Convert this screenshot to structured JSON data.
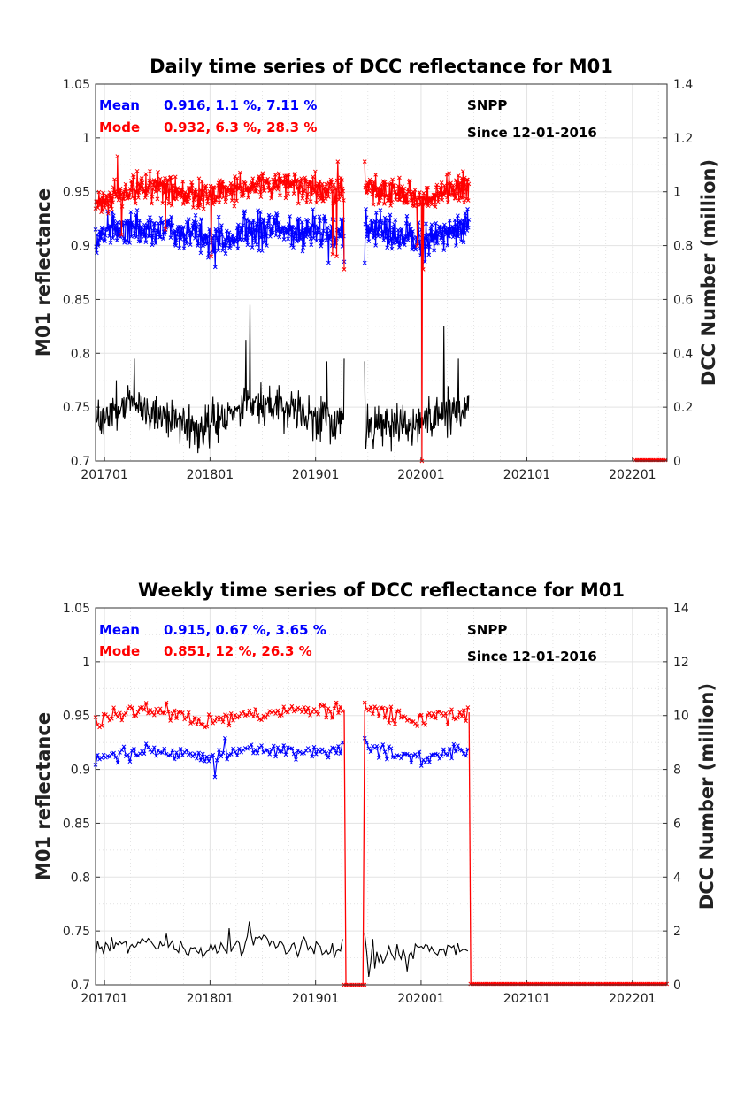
{
  "chart_data": [
    {
      "type": "line",
      "title": "Daily time series of DCC reflectance for M01",
      "ylabel": "M01 reflectance",
      "y2label": "DCC Number (million)",
      "x_tick_labels": [
        "201701",
        "201801",
        "201901",
        "202001",
        "202101",
        "202201"
      ],
      "x_tick_dates": [
        "2017-01-01",
        "2018-01-01",
        "2019-01-01",
        "2020-01-01",
        "2021-01-01",
        "2022-01-01"
      ],
      "xlim": [
        "2016-12-01",
        "2022-05-01"
      ],
      "ylim": [
        0.7,
        1.05
      ],
      "y_ticks": [
        "0.7",
        "0.75",
        "0.8",
        "0.85",
        "0.9",
        "0.95",
        "1",
        "1.05"
      ],
      "y2lim": [
        0,
        1.4
      ],
      "y2_ticks": [
        "0",
        "0.2",
        "0.4",
        "0.6",
        "0.8",
        "1",
        "1.2",
        "1.4"
      ],
      "grid": true,
      "colors": {
        "mean": "#0000ff",
        "mode": "#ff0000",
        "count": "#000000"
      },
      "legend": {
        "mean_label": "Mean",
        "mean_stats": "0.916, 1.1 %, 7.11 %",
        "mode_label": "Mode",
        "mode_stats": "0.932, 6.3 %, 28.3 %",
        "satellite": "SNPP",
        "since": "Since 12-01-2016"
      },
      "segments": [
        [
          "2016-12-01",
          "2019-04-10"
        ],
        [
          "2019-06-20",
          "2020-06-15"
        ]
      ],
      "zero_tail": [
        "2022-01-10",
        "2022-05-01"
      ],
      "series": [
        {
          "key": "mean",
          "axis": "left",
          "level": 0.915,
          "noise": 0.012,
          "dips": [
            [
              "2018-01-20",
              0.88
            ],
            [
              "2019-02-15",
              0.884
            ],
            [
              "2020-01-15",
              0.885
            ]
          ],
          "knots": [
            [
              "2016-12-01",
              0.91
            ],
            [
              "2017-06-01",
              0.918
            ],
            [
              "2018-01-01",
              0.905
            ],
            [
              "2018-06-01",
              0.915
            ],
            [
              "2019-03-01",
              0.912
            ],
            [
              "2019-07-01",
              0.918
            ],
            [
              "2020-01-01",
              0.905
            ],
            [
              "2020-06-01",
              0.918
            ]
          ]
        },
        {
          "key": "mode",
          "axis": "left",
          "level": 0.952,
          "noise": 0.01,
          "dips": [
            [
              "2017-03-01",
              0.91
            ],
            [
              "2017-08-01",
              0.915
            ],
            [
              "2018-01-05",
              0.89
            ],
            [
              "2019-03-01",
              0.892
            ],
            [
              "2019-03-15",
              0.89
            ],
            [
              "2019-12-20",
              0.9
            ],
            [
              "2020-01-05",
              0.7
            ],
            [
              "2020-01-08",
              0.878
            ]
          ],
          "peaks": [
            [
              "2017-02-15",
              0.983
            ],
            [
              "2019-03-20",
              0.978
            ]
          ],
          "knots": [
            [
              "2016-12-01",
              0.94
            ],
            [
              "2017-06-01",
              0.955
            ],
            [
              "2018-01-01",
              0.945
            ],
            [
              "2018-06-01",
              0.958
            ],
            [
              "2019-03-01",
              0.952
            ],
            [
              "2019-07-01",
              0.955
            ],
            [
              "2020-01-01",
              0.945
            ],
            [
              "2020-06-01",
              0.955
            ]
          ]
        },
        {
          "key": "count",
          "axis": "right",
          "level": 0.17,
          "noise": 0.06,
          "peaks": [
            [
              "2018-05-20",
              0.58
            ],
            [
              "2018-05-05",
              0.45
            ],
            [
              "2020-03-20",
              0.5
            ],
            [
              "2017-04-15",
              0.38
            ],
            [
              "2019-02-10",
              0.37
            ],
            [
              "2020-05-10",
              0.38
            ]
          ],
          "knots": [
            [
              "2016-12-01",
              0.15
            ],
            [
              "2017-04-01",
              0.22
            ],
            [
              "2017-12-01",
              0.12
            ],
            [
              "2018-06-01",
              0.22
            ],
            [
              "2019-01-01",
              0.16
            ],
            [
              "2019-07-01",
              0.12
            ],
            [
              "2020-01-01",
              0.14
            ],
            [
              "2020-06-01",
              0.2
            ]
          ]
        }
      ]
    },
    {
      "type": "line",
      "title": "Weekly time series of DCC reflectance for M01",
      "ylabel": "M01 reflectance",
      "y2label": "DCC Number (million)",
      "x_tick_labels": [
        "201701",
        "201801",
        "201901",
        "202001",
        "202101",
        "202201"
      ],
      "x_tick_dates": [
        "2017-01-01",
        "2018-01-01",
        "2019-01-01",
        "2020-01-01",
        "2021-01-01",
        "2022-01-01"
      ],
      "xlim": [
        "2016-12-01",
        "2022-05-01"
      ],
      "ylim": [
        0.7,
        1.05
      ],
      "y_ticks": [
        "0.7",
        "0.75",
        "0.8",
        "0.85",
        "0.9",
        "0.95",
        "1",
        "1.05"
      ],
      "y2lim": [
        0,
        14
      ],
      "y2_ticks": [
        "0",
        "2",
        "4",
        "6",
        "8",
        "10",
        "12",
        "14"
      ],
      "grid": true,
      "colors": {
        "mean": "#0000ff",
        "mode": "#ff0000",
        "count": "#000000"
      },
      "legend": {
        "mean_label": "Mean",
        "mean_stats": "0.915, 0.67 %, 3.65 %",
        "mode_label": "Mode",
        "mode_stats": "0.851, 12 %, 26.3 %",
        "satellite": "SNPP",
        "since": "Since 12-01-2016"
      },
      "segments": [
        [
          "2016-12-01",
          "2019-04-10"
        ],
        [
          "2019-06-20",
          "2020-06-15"
        ]
      ],
      "zero_gap_fill": true,
      "zero_tail": [
        "2020-06-20",
        "2022-05-01"
      ],
      "series": [
        {
          "key": "mean",
          "axis": "left",
          "level": 0.915,
          "noise": 0.005,
          "dips": [
            [
              "2018-01-20",
              0.893
            ]
          ],
          "peaks": [
            [
              "2018-02-20",
              0.929
            ],
            [
              "2019-06-25",
              0.925
            ]
          ],
          "knots": [
            [
              "2016-12-01",
              0.91
            ],
            [
              "2017-06-01",
              0.918
            ],
            [
              "2018-01-01",
              0.91
            ],
            [
              "2018-06-01",
              0.918
            ],
            [
              "2019-03-01",
              0.915
            ],
            [
              "2019-07-01",
              0.92
            ],
            [
              "2020-01-01",
              0.91
            ],
            [
              "2020-06-01",
              0.92
            ]
          ]
        },
        {
          "key": "mode",
          "axis": "left",
          "level": 0.95,
          "noise": 0.005,
          "peaks": [
            [
              "2017-08-01",
              0.962
            ],
            [
              "2019-03-15",
              0.962
            ]
          ],
          "knots": [
            [
              "2016-12-01",
              0.946
            ],
            [
              "2017-06-01",
              0.956
            ],
            [
              "2017-12-01",
              0.943
            ],
            [
              "2018-06-01",
              0.952
            ],
            [
              "2019-03-01",
              0.955
            ],
            [
              "2019-07-01",
              0.955
            ],
            [
              "2020-01-01",
              0.945
            ],
            [
              "2020-06-01",
              0.953
            ]
          ]
        },
        {
          "key": "count",
          "axis": "right",
          "level": 1.4,
          "noise": 0.25,
          "peaks": [
            [
              "2018-05-20",
              2.35
            ],
            [
              "2018-03-10",
              2.1
            ],
            [
              "2017-08-01",
              1.9
            ],
            [
              "2019-07-15",
              1.7
            ]
          ],
          "dips": [
            [
              "2019-07-05",
              0.3
            ],
            [
              "2019-11-15",
              0.5
            ]
          ],
          "knots": [
            [
              "2016-12-01",
              1.4
            ],
            [
              "2017-06-01",
              1.6
            ],
            [
              "2018-01-01",
              1.2
            ],
            [
              "2018-06-01",
              1.6
            ],
            [
              "2019-03-01",
              1.3
            ],
            [
              "2019-07-01",
              1.0
            ],
            [
              "2020-01-01",
              1.4
            ],
            [
              "2020-06-01",
              1.3
            ]
          ]
        }
      ]
    }
  ]
}
